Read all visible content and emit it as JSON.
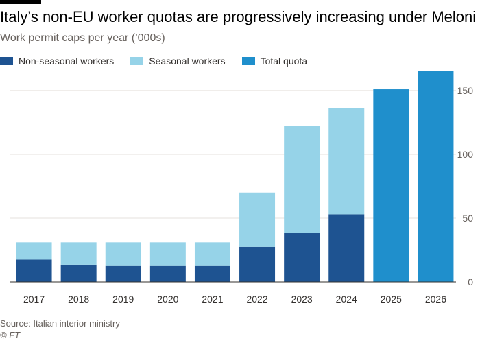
{
  "chart_data": {
    "type": "bar",
    "stacked": true,
    "title": "Italy’s non-EU worker quotas are progressively increasing under Meloni",
    "subtitle": "Work permit caps per year (’000s)",
    "xlabel": "",
    "ylabel": "",
    "categories": [
      "2017",
      "2018",
      "2019",
      "2020",
      "2021",
      "2022",
      "2023",
      "2024",
      "2025",
      "2026"
    ],
    "series": [
      {
        "name": "Non-seasonal workers",
        "color": "#1e5391",
        "values": [
          17.5,
          13.5,
          12.5,
          12.5,
          12.5,
          27.5,
          38.5,
          53,
          null,
          null
        ]
      },
      {
        "name": "Seasonal workers",
        "color": "#96d3e8",
        "values": [
          13.5,
          17.5,
          18.5,
          18.5,
          18.5,
          42.5,
          84,
          83,
          null,
          null
        ]
      },
      {
        "name": "Total quota",
        "color": "#1f8fcc",
        "values": [
          null,
          null,
          null,
          null,
          null,
          null,
          null,
          null,
          151,
          165
        ]
      }
    ],
    "ylim": [
      0,
      165
    ],
    "yticks": [
      0,
      50,
      100,
      150
    ],
    "ytick_labels": [
      "0",
      "50",
      "100",
      "150"
    ],
    "grid": true,
    "legend_position": "top-left"
  },
  "footer": {
    "source": "Source: Italian interior ministry",
    "copyright": "© FT"
  }
}
